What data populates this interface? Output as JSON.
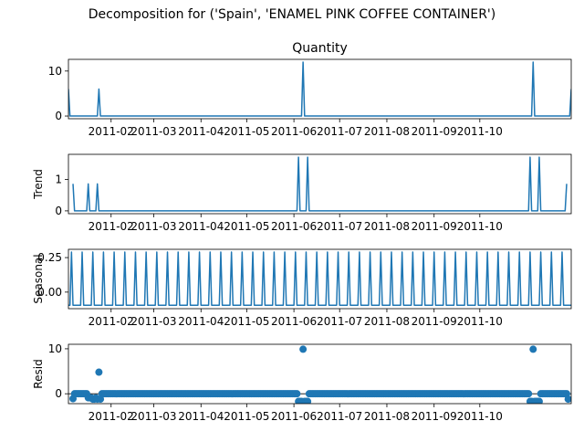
{
  "figure": {
    "suptitle": "Decomposition for ('Spain', 'ENAMEL PINK COFFEE CONTAINER')",
    "line_color": "#1f77b4"
  },
  "chart_data": [
    {
      "type": "line",
      "title": "Quantity",
      "ylabel": "",
      "x_range": [
        "2011-01-04",
        "2011-11-30"
      ],
      "x_ticks": [
        "2011-02",
        "2011-03",
        "2011-04",
        "2011-05",
        "2011-06",
        "2011-07",
        "2011-08",
        "2011-09",
        "2011-10"
      ],
      "y_ticks": [
        0,
        10
      ],
      "ylim": [
        -0.6,
        12.6
      ],
      "points": [
        [
          "2011-01-04",
          6
        ],
        [
          "2011-01-05",
          0
        ],
        [
          "2011-01-23",
          0
        ],
        [
          "2011-01-24",
          6
        ],
        [
          "2011-01-25",
          0
        ],
        [
          "2011-06-06",
          0
        ],
        [
          "2011-06-07",
          12
        ],
        [
          "2011-06-08",
          0
        ],
        [
          "2011-11-04",
          0
        ],
        [
          "2011-11-05",
          12
        ],
        [
          "2011-11-06",
          0
        ],
        [
          "2011-11-29",
          0
        ],
        [
          "2011-11-30",
          6
        ]
      ]
    },
    {
      "type": "line",
      "title": "",
      "ylabel": "Trend",
      "x_range": [
        "2011-01-04",
        "2011-11-30"
      ],
      "x_ticks": [
        "2011-02",
        "2011-03",
        "2011-04",
        "2011-05",
        "2011-06",
        "2011-07",
        "2011-08",
        "2011-09",
        "2011-10"
      ],
      "y_ticks": [
        0,
        1
      ],
      "ylim": [
        -0.09,
        1.8
      ],
      "points": [
        [
          "2011-01-07",
          0.86
        ],
        [
          "2011-01-08",
          0
        ],
        [
          "2011-01-16",
          0
        ],
        [
          "2011-01-17",
          0.86
        ],
        [
          "2011-01-23",
          0.86
        ],
        [
          "2011-01-24",
          0
        ],
        [
          "2011-06-03",
          0
        ],
        [
          "2011-06-04",
          1.71
        ],
        [
          "2011-06-10",
          1.71
        ],
        [
          "2011-06-11",
          0
        ],
        [
          "2011-11-02",
          0
        ],
        [
          "2011-11-03",
          1.71
        ],
        [
          "2011-11-09",
          1.71
        ],
        [
          "2011-11-10",
          0
        ],
        [
          "2011-11-26",
          0
        ],
        [
          "2011-11-27",
          0.86
        ]
      ]
    },
    {
      "type": "line",
      "title": "",
      "ylabel": "Seasonal",
      "x_range": [
        "2011-01-04",
        "2011-11-30"
      ],
      "x_ticks": [
        "2011-02",
        "2011-03",
        "2011-04",
        "2011-05",
        "2011-06",
        "2011-07",
        "2011-08",
        "2011-09",
        "2011-10"
      ],
      "y_ticks": [
        -0.0,
        0.25
      ],
      "y_tick_labels": [
        "0.00",
        "0.25"
      ],
      "ylim": [
        -0.12,
        0.31
      ],
      "period_days": 7,
      "pattern": [
        0.29,
        -0.095,
        -0.095,
        -0.095,
        -0.095,
        -0.095,
        -0.095
      ],
      "pattern_start": "2011-01-06"
    },
    {
      "type": "scatter",
      "title": "",
      "ylabel": "Resid",
      "x_range": [
        "2011-01-04",
        "2011-11-30"
      ],
      "x_ticks": [
        "2011-02",
        "2011-03",
        "2011-04",
        "2011-05",
        "2011-06",
        "2011-07",
        "2011-08",
        "2011-09",
        "2011-10"
      ],
      "y_ticks": [
        0,
        10
      ],
      "ylim": [
        -2.2,
        11
      ],
      "baseline": 0,
      "x_start": "2011-01-07",
      "x_end": "2011-11-28",
      "special": [
        [
          "2011-01-07",
          -1.1
        ],
        [
          "2011-01-17",
          -0.9
        ],
        [
          "2011-01-18",
          -0.9
        ],
        [
          "2011-01-19",
          -0.9
        ],
        [
          "2011-01-20",
          -1.2
        ],
        [
          "2011-01-21",
          -1.2
        ],
        [
          "2011-01-22",
          -0.9
        ],
        [
          "2011-01-23",
          -1.2
        ],
        [
          "2011-01-24",
          4.8
        ],
        [
          "2011-01-25",
          -1.2
        ],
        [
          "2011-06-04",
          -1.7
        ],
        [
          "2011-06-05",
          -1.7
        ],
        [
          "2011-06-06",
          -1.7
        ],
        [
          "2011-06-07",
          9.9
        ],
        [
          "2011-06-08",
          -1.7
        ],
        [
          "2011-06-09",
          -1.7
        ],
        [
          "2011-06-10",
          -1.7
        ],
        [
          "2011-11-03",
          -1.7
        ],
        [
          "2011-11-04",
          -1.7
        ],
        [
          "2011-11-05",
          9.9
        ],
        [
          "2011-11-06",
          -1.7
        ],
        [
          "2011-11-07",
          -1.7
        ],
        [
          "2011-11-08",
          -1.7
        ],
        [
          "2011-11-09",
          -1.7
        ],
        [
          "2011-11-28",
          -1.2
        ]
      ]
    }
  ]
}
